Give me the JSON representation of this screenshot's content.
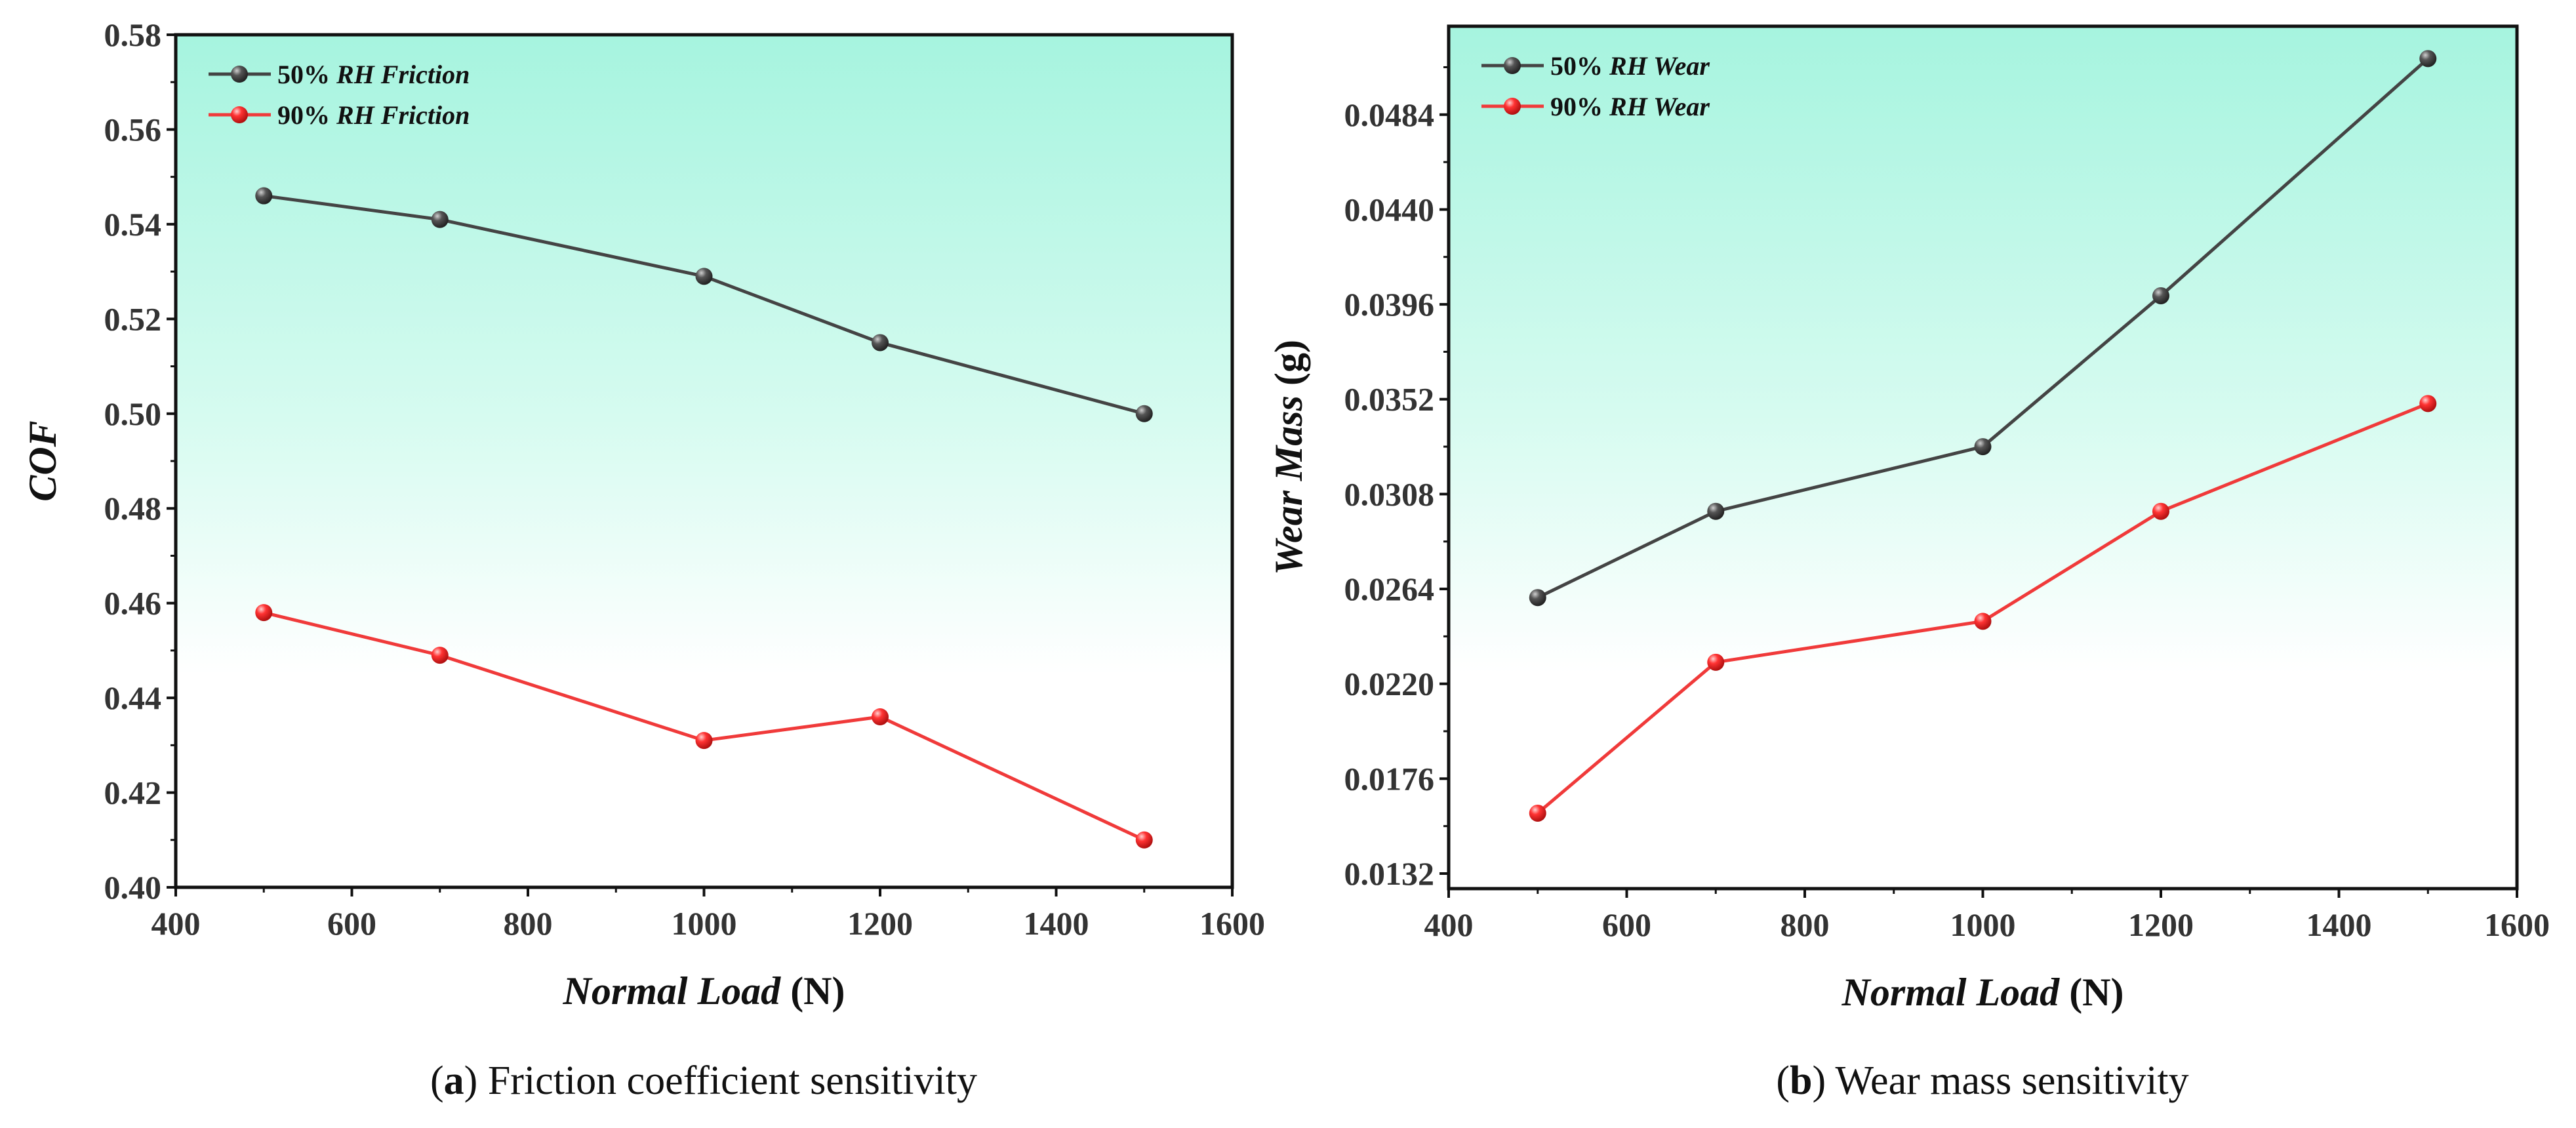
{
  "chart_data": [
    {
      "type": "line",
      "caption_label": "a",
      "caption_text": " Friction coefficient sensitivity",
      "xlabel_italic": "Normal Load",
      "xlabel_unit": " (N)",
      "ylabel_italic": "COF",
      "ylabel_unit": "",
      "xlim": [
        400,
        1600
      ],
      "xticks": [
        "400",
        "600",
        "800",
        "1000",
        "1200",
        "1400",
        "1600"
      ],
      "ylim": [
        0.4,
        0.58
      ],
      "yticks": [
        "0.40",
        "0.42",
        "0.44",
        "0.46",
        "0.48",
        "0.50",
        "0.52",
        "0.54",
        "0.56",
        "0.58"
      ],
      "x": [
        500,
        700,
        1000,
        1200,
        1500
      ],
      "legend_position": "top-left",
      "series": [
        {
          "name_prefix": "50% ",
          "name_italic": "RH Friction",
          "color": "#444444",
          "values": [
            0.546,
            0.541,
            0.529,
            0.515,
            0.5
          ]
        },
        {
          "name_prefix": "90% ",
          "name_italic": "RH Friction",
          "color": "#f03a3a",
          "values": [
            0.458,
            0.449,
            0.431,
            0.436,
            0.41
          ]
        }
      ]
    },
    {
      "type": "line",
      "caption_label": "b",
      "caption_text": " Wear mass sensitivity",
      "xlabel_italic": "Normal Load",
      "xlabel_unit": " (N)",
      "ylabel_italic": "Wear Mass",
      "ylabel_unit": " (g)",
      "xlim": [
        400,
        1600
      ],
      "xticks": [
        "400",
        "600",
        "800",
        "1000",
        "1200",
        "1400",
        "1600"
      ],
      "ylim": [
        0.0125,
        0.0525
      ],
      "yticks": [
        "0.0132",
        "0.0176",
        "0.0220",
        "0.0264",
        "0.0308",
        "0.0352",
        "0.0396",
        "0.0440",
        "0.0484"
      ],
      "x": [
        500,
        700,
        1000,
        1200,
        1500
      ],
      "legend_position": "top-left",
      "series": [
        {
          "name_prefix": "50% ",
          "name_italic": "RH Wear",
          "color": "#444444",
          "values": [
            0.026,
            0.03,
            0.033,
            0.04,
            0.051
          ]
        },
        {
          "name_prefix": "90% ",
          "name_italic": "RH Wear",
          "color": "#f03a3a",
          "values": [
            0.016,
            0.023,
            0.0249,
            0.03,
            0.035
          ]
        }
      ]
    }
  ]
}
